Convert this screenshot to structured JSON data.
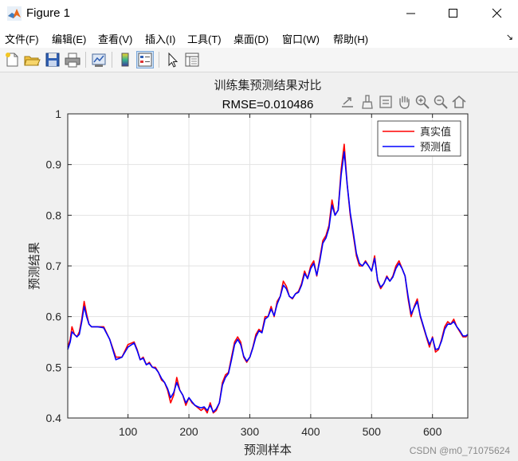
{
  "window": {
    "title": "Figure 1"
  },
  "menu": {
    "items": [
      "文件(F)",
      "编辑(E)",
      "查看(V)",
      "插入(I)",
      "工具(T)",
      "桌面(D)",
      "窗口(W)",
      "帮助(H)"
    ]
  },
  "toolbar": {
    "buttons": [
      "new-figure-icon",
      "open-file-icon",
      "save-icon",
      "print-icon",
      "link-plot-icon",
      "colorbar-icon",
      "legend-icon",
      "edit-plot-icon",
      "property-inspector-icon"
    ]
  },
  "axes_toolbar": {
    "buttons": [
      "export-icon",
      "brush-icon",
      "data-tips-icon",
      "pan-icon",
      "zoom-in-icon",
      "zoom-out-icon",
      "home-icon"
    ]
  },
  "watermark": "CSDN @m0_71075624",
  "chart_data": {
    "type": "line",
    "title": "训练集预测结果对比",
    "subtitle": "RMSE=0.010486",
    "xlabel": "预测样本",
    "ylabel": "预测结果",
    "xlim": [
      1,
      658
    ],
    "ylim": [
      0.4,
      1.0
    ],
    "xticks": [
      100,
      200,
      300,
      400,
      500,
      600
    ],
    "yticks": [
      0.4,
      0.5,
      0.6,
      0.7,
      0.8,
      0.9,
      1
    ],
    "grid": true,
    "legend_position": "top-right",
    "colors": {
      "actual": "#ff0000",
      "predicted": "#0000ff"
    },
    "series": [
      {
        "name": "真实值",
        "x": [
          1,
          5,
          8,
          12,
          16,
          20,
          24,
          28,
          32,
          36,
          40,
          50,
          60,
          70,
          80,
          90,
          100,
          110,
          115,
          120,
          125,
          130,
          135,
          140,
          145,
          150,
          155,
          160,
          165,
          170,
          175,
          180,
          185,
          190,
          195,
          200,
          205,
          210,
          215,
          220,
          225,
          230,
          235,
          240,
          245,
          250,
          255,
          260,
          265,
          270,
          275,
          280,
          285,
          290,
          295,
          300,
          305,
          310,
          315,
          320,
          325,
          330,
          335,
          340,
          345,
          350,
          355,
          360,
          365,
          370,
          375,
          380,
          385,
          390,
          395,
          400,
          405,
          410,
          415,
          420,
          425,
          430,
          435,
          440,
          445,
          450,
          455,
          460,
          465,
          470,
          475,
          480,
          485,
          490,
          495,
          500,
          505,
          510,
          515,
          520,
          525,
          530,
          535,
          540,
          545,
          550,
          555,
          560,
          565,
          570,
          575,
          580,
          585,
          590,
          595,
          600,
          605,
          610,
          615,
          620,
          625,
          630,
          635,
          640,
          645,
          650,
          655,
          658
        ],
        "values": [
          0.54,
          0.555,
          0.58,
          0.565,
          0.56,
          0.57,
          0.595,
          0.63,
          0.605,
          0.585,
          0.58,
          0.58,
          0.58,
          0.555,
          0.52,
          0.52,
          0.545,
          0.55,
          0.535,
          0.515,
          0.52,
          0.505,
          0.51,
          0.5,
          0.5,
          0.49,
          0.475,
          0.47,
          0.455,
          0.43,
          0.445,
          0.48,
          0.455,
          0.445,
          0.425,
          0.44,
          0.43,
          0.425,
          0.42,
          0.415,
          0.42,
          0.41,
          0.43,
          0.41,
          0.415,
          0.43,
          0.47,
          0.485,
          0.49,
          0.52,
          0.55,
          0.56,
          0.55,
          0.52,
          0.51,
          0.52,
          0.54,
          0.565,
          0.575,
          0.57,
          0.6,
          0.6,
          0.62,
          0.6,
          0.63,
          0.64,
          0.67,
          0.66,
          0.64,
          0.635,
          0.645,
          0.65,
          0.665,
          0.69,
          0.675,
          0.7,
          0.71,
          0.68,
          0.715,
          0.75,
          0.76,
          0.78,
          0.83,
          0.8,
          0.81,
          0.89,
          0.94,
          0.86,
          0.8,
          0.76,
          0.72,
          0.7,
          0.7,
          0.71,
          0.7,
          0.69,
          0.72,
          0.67,
          0.655,
          0.665,
          0.68,
          0.67,
          0.68,
          0.7,
          0.71,
          0.695,
          0.68,
          0.635,
          0.6,
          0.62,
          0.635,
          0.6,
          0.58,
          0.56,
          0.54,
          0.56,
          0.53,
          0.535,
          0.555,
          0.58,
          0.59,
          0.585,
          0.595,
          0.58,
          0.57,
          0.56,
          0.56,
          0.565
        ]
      },
      {
        "name": "预测值",
        "x": [
          1,
          5,
          8,
          12,
          16,
          20,
          24,
          28,
          32,
          36,
          40,
          50,
          60,
          70,
          80,
          90,
          100,
          110,
          115,
          120,
          125,
          130,
          135,
          140,
          145,
          150,
          155,
          160,
          165,
          170,
          175,
          180,
          185,
          190,
          195,
          200,
          205,
          210,
          215,
          220,
          225,
          230,
          235,
          240,
          245,
          250,
          255,
          260,
          265,
          270,
          275,
          280,
          285,
          290,
          295,
          300,
          305,
          310,
          315,
          320,
          325,
          330,
          335,
          340,
          345,
          350,
          355,
          360,
          365,
          370,
          375,
          380,
          385,
          390,
          395,
          400,
          405,
          410,
          415,
          420,
          425,
          430,
          435,
          440,
          445,
          450,
          455,
          460,
          465,
          470,
          475,
          480,
          485,
          490,
          495,
          500,
          505,
          510,
          515,
          520,
          525,
          530,
          535,
          540,
          545,
          550,
          555,
          560,
          565,
          570,
          575,
          580,
          585,
          590,
          595,
          600,
          605,
          610,
          615,
          620,
          625,
          630,
          635,
          640,
          645,
          650,
          655,
          658
        ],
        "values": [
          0.535,
          0.55,
          0.57,
          0.565,
          0.56,
          0.565,
          0.59,
          0.62,
          0.6,
          0.585,
          0.58,
          0.58,
          0.578,
          0.555,
          0.515,
          0.52,
          0.54,
          0.548,
          0.533,
          0.515,
          0.518,
          0.505,
          0.508,
          0.5,
          0.498,
          0.49,
          0.478,
          0.47,
          0.458,
          0.44,
          0.45,
          0.47,
          0.455,
          0.445,
          0.43,
          0.44,
          0.432,
          0.425,
          0.422,
          0.42,
          0.422,
          0.415,
          0.425,
          0.412,
          0.418,
          0.43,
          0.465,
          0.48,
          0.488,
          0.515,
          0.545,
          0.555,
          0.545,
          0.522,
          0.512,
          0.52,
          0.538,
          0.56,
          0.572,
          0.568,
          0.595,
          0.6,
          0.615,
          0.602,
          0.625,
          0.64,
          0.662,
          0.655,
          0.64,
          0.636,
          0.645,
          0.648,
          0.662,
          0.685,
          0.675,
          0.695,
          0.705,
          0.682,
          0.71,
          0.745,
          0.755,
          0.775,
          0.82,
          0.8,
          0.81,
          0.88,
          0.925,
          0.86,
          0.805,
          0.765,
          0.725,
          0.705,
          0.7,
          0.708,
          0.7,
          0.69,
          0.715,
          0.672,
          0.658,
          0.665,
          0.678,
          0.67,
          0.678,
          0.695,
          0.705,
          0.695,
          0.68,
          0.64,
          0.605,
          0.618,
          0.63,
          0.602,
          0.582,
          0.562,
          0.545,
          0.558,
          0.535,
          0.537,
          0.552,
          0.575,
          0.585,
          0.585,
          0.59,
          0.58,
          0.572,
          0.562,
          0.562,
          0.565
        ]
      }
    ]
  }
}
